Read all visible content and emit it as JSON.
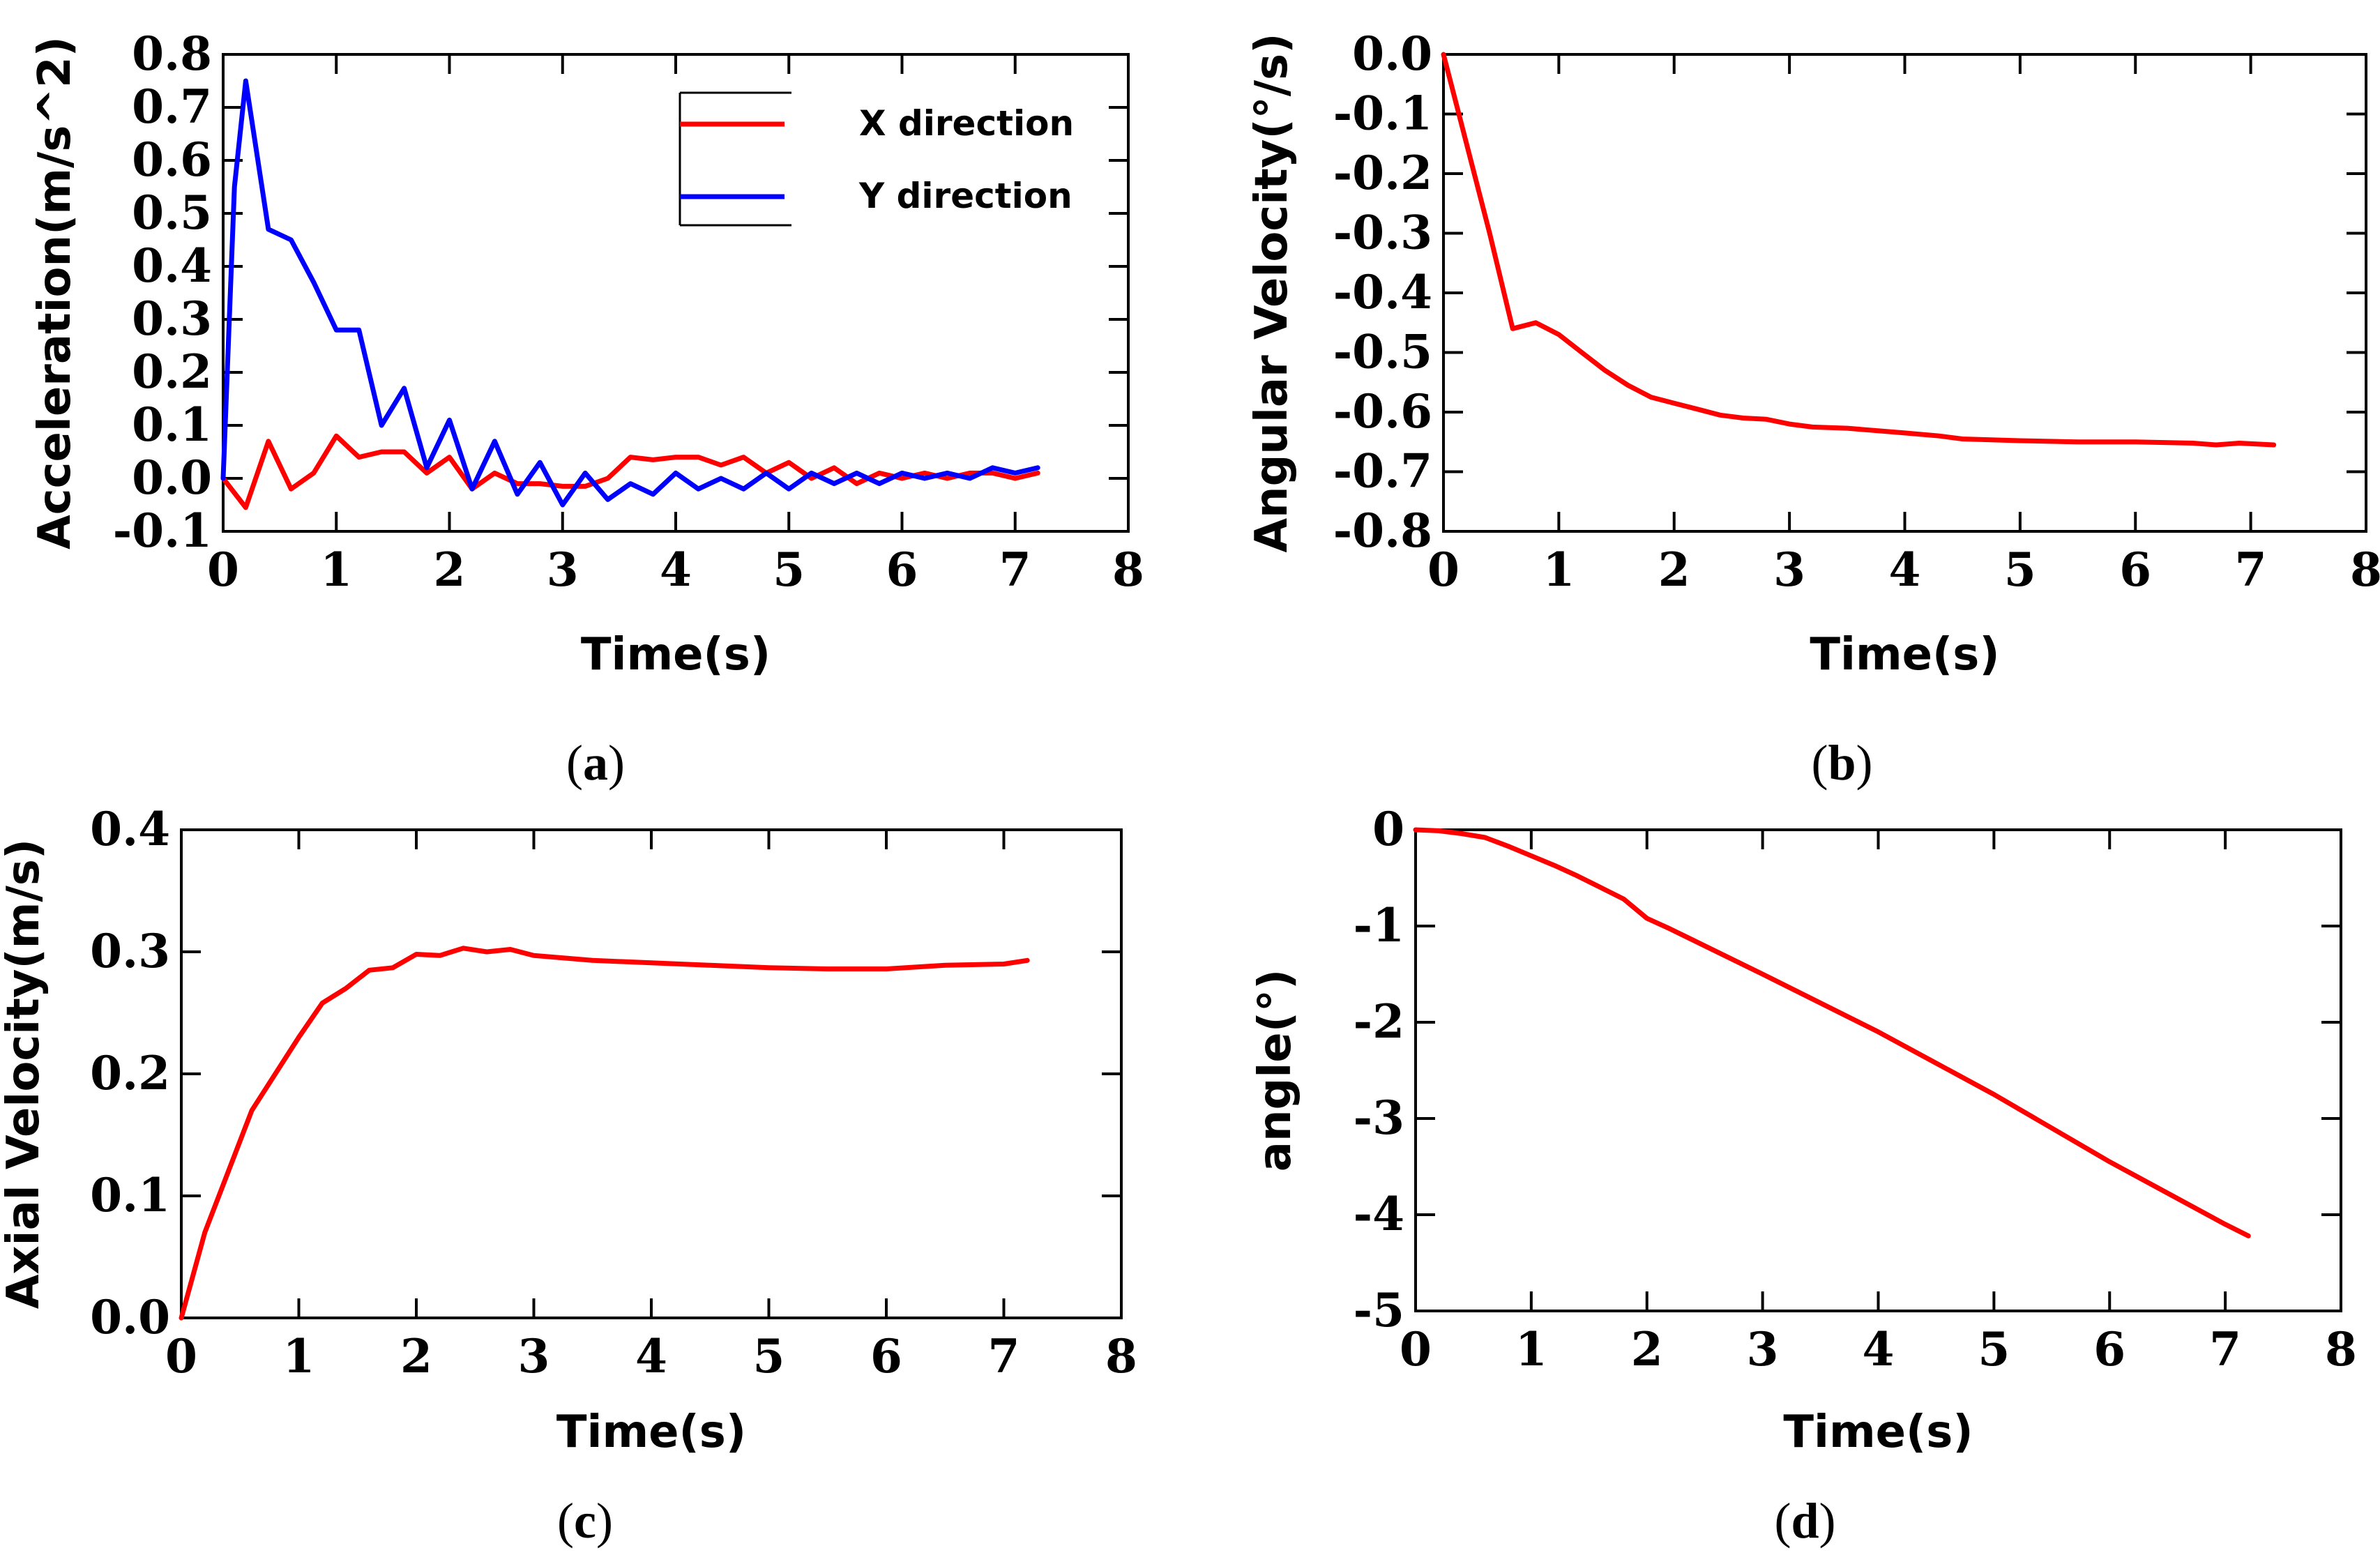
{
  "colors": {
    "red": "#ff0000",
    "blue": "#0000ff",
    "axis": "#000000"
  },
  "chart_data": [
    {
      "type": "line",
      "panel": "(a)",
      "caption": {
        "open": "(",
        "letter": "a",
        "close": ")"
      },
      "xlabel": "Time(s)",
      "ylabel": "Acceleration(m/s^2)",
      "xlim": [
        0,
        8
      ],
      "ylim": [
        -0.1,
        0.8
      ],
      "xticks": [
        0,
        1,
        2,
        3,
        4,
        5,
        6,
        7,
        8
      ],
      "xtick_labels": [
        "0",
        "1",
        "2",
        "3",
        "4",
        "5",
        "6",
        "7",
        "8"
      ],
      "yticks": [
        -0.1,
        0.0,
        0.1,
        0.2,
        0.3,
        0.4,
        0.5,
        0.6,
        0.7,
        0.8
      ],
      "ytick_labels": [
        "-0.1",
        "0.0",
        "0.1",
        "0.2",
        "0.3",
        "0.4",
        "0.5",
        "0.6",
        "0.7",
        "0.8"
      ],
      "legend_position": "top-center",
      "series": [
        {
          "name": "X direction",
          "color": "#ff0000",
          "x": [
            0,
            0.2,
            0.4,
            0.6,
            0.8,
            1.0,
            1.2,
            1.4,
            1.6,
            1.8,
            2.0,
            2.2,
            2.4,
            2.6,
            2.8,
            3.0,
            3.2,
            3.4,
            3.6,
            3.8,
            4.0,
            4.2,
            4.4,
            4.6,
            4.8,
            5.0,
            5.2,
            5.4,
            5.6,
            5.8,
            6.0,
            6.2,
            6.4,
            6.6,
            6.8,
            7.0,
            7.2
          ],
          "y": [
            0.0,
            -0.055,
            0.07,
            -0.02,
            0.01,
            0.08,
            0.04,
            0.05,
            0.05,
            0.01,
            0.04,
            -0.02,
            0.01,
            -0.01,
            -0.01,
            -0.015,
            -0.015,
            0.0,
            0.04,
            0.035,
            0.04,
            0.04,
            0.025,
            0.04,
            0.01,
            0.03,
            0.0,
            0.02,
            -0.01,
            0.01,
            0.0,
            0.01,
            0.0,
            0.01,
            0.01,
            0.0,
            0.01
          ]
        },
        {
          "name": "Y direction",
          "color": "#0000ff",
          "x": [
            0,
            0.1,
            0.2,
            0.4,
            0.6,
            0.8,
            1.0,
            1.2,
            1.4,
            1.6,
            1.8,
            2.0,
            2.2,
            2.4,
            2.6,
            2.8,
            3.0,
            3.2,
            3.4,
            3.6,
            3.8,
            4.0,
            4.2,
            4.4,
            4.6,
            4.8,
            5.0,
            5.2,
            5.4,
            5.6,
            5.8,
            6.0,
            6.2,
            6.4,
            6.6,
            6.8,
            7.0,
            7.2
          ],
          "y": [
            0.0,
            0.55,
            0.75,
            0.47,
            0.45,
            0.37,
            0.28,
            0.28,
            0.1,
            0.17,
            0.02,
            0.11,
            -0.02,
            0.07,
            -0.03,
            0.03,
            -0.05,
            0.01,
            -0.04,
            -0.01,
            -0.03,
            0.01,
            -0.02,
            0.0,
            -0.02,
            0.01,
            -0.02,
            0.01,
            -0.01,
            0.01,
            -0.01,
            0.01,
            0.0,
            0.01,
            0.0,
            0.02,
            0.01,
            0.02
          ]
        }
      ]
    },
    {
      "type": "line",
      "panel": "(b)",
      "caption": {
        "open": "(",
        "letter": "b",
        "close": ")"
      },
      "xlabel": "Time(s)",
      "ylabel": "Angular Velocity(°/s)",
      "xlim": [
        0,
        8
      ],
      "ylim": [
        -0.8,
        0.0
      ],
      "xticks": [
        0,
        1,
        2,
        3,
        4,
        5,
        6,
        7,
        8
      ],
      "xtick_labels": [
        "0",
        "1",
        "2",
        "3",
        "4",
        "5",
        "6",
        "7",
        "8"
      ],
      "yticks": [
        0.0,
        -0.1,
        -0.2,
        -0.3,
        -0.4,
        -0.5,
        -0.6,
        -0.7,
        -0.8
      ],
      "ytick_labels": [
        "0.0",
        "-0.1",
        "-0.2",
        "-0.3",
        "-0.4",
        "-0.5",
        "-0.6",
        "-0.7",
        "-0.8"
      ],
      "series": [
        {
          "name": "Angular velocity",
          "color": "#ff0000",
          "x": [
            0,
            0.2,
            0.4,
            0.6,
            0.8,
            1.0,
            1.2,
            1.4,
            1.6,
            1.8,
            2.0,
            2.2,
            2.4,
            2.6,
            2.8,
            3.0,
            3.2,
            3.5,
            4.0,
            4.3,
            4.5,
            5.0,
            5.5,
            6.0,
            6.5,
            6.7,
            6.9,
            7.2
          ],
          "y": [
            0.0,
            -0.15,
            -0.3,
            -0.46,
            -0.45,
            -0.47,
            -0.5,
            -0.53,
            -0.555,
            -0.575,
            -0.585,
            -0.595,
            -0.605,
            -0.61,
            -0.612,
            -0.62,
            -0.625,
            -0.627,
            -0.635,
            -0.64,
            -0.645,
            -0.648,
            -0.65,
            -0.65,
            -0.652,
            -0.655,
            -0.652,
            -0.655
          ]
        }
      ]
    },
    {
      "type": "line",
      "panel": "(c)",
      "caption": {
        "open": "(",
        "letter": "c",
        "close": ")"
      },
      "xlabel": "Time(s)",
      "ylabel": "Axial Velocity(m/s)",
      "xlim": [
        0,
        8
      ],
      "ylim": [
        0.0,
        0.4
      ],
      "xticks": [
        0,
        1,
        2,
        3,
        4,
        5,
        6,
        7,
        8
      ],
      "xtick_labels": [
        "0",
        "1",
        "2",
        "3",
        "4",
        "5",
        "6",
        "7",
        "8"
      ],
      "yticks": [
        0.0,
        0.1,
        0.2,
        0.3,
        0.4
      ],
      "ytick_labels": [
        "0.0",
        "0.1",
        "0.2",
        "0.3",
        "0.4"
      ],
      "series": [
        {
          "name": "Axial velocity",
          "color": "#ff0000",
          "x": [
            0,
            0.2,
            0.4,
            0.6,
            0.8,
            1.0,
            1.2,
            1.4,
            1.6,
            1.8,
            2.0,
            2.2,
            2.4,
            2.6,
            2.8,
            3.0,
            3.5,
            4.0,
            4.5,
            5.0,
            5.5,
            6.0,
            6.5,
            7.0,
            7.2
          ],
          "y": [
            0.0,
            0.07,
            0.12,
            0.17,
            0.2,
            0.23,
            0.258,
            0.27,
            0.285,
            0.287,
            0.298,
            0.297,
            0.303,
            0.3,
            0.302,
            0.297,
            0.293,
            0.291,
            0.289,
            0.287,
            0.286,
            0.286,
            0.289,
            0.29,
            0.293
          ]
        }
      ]
    },
    {
      "type": "line",
      "panel": "(d)",
      "caption": {
        "open": "(",
        "letter": "d",
        "close": ")"
      },
      "xlabel": "Time(s)",
      "ylabel": "angle(°)",
      "xlim": [
        0,
        8
      ],
      "ylim": [
        -5,
        0
      ],
      "xticks": [
        0,
        1,
        2,
        3,
        4,
        5,
        6,
        7,
        8
      ],
      "xtick_labels": [
        "0",
        "1",
        "2",
        "3",
        "4",
        "5",
        "6",
        "7",
        "8"
      ],
      "yticks": [
        0,
        -1,
        -2,
        -3,
        -4,
        -5
      ],
      "ytick_labels": [
        "0",
        "-1",
        "-2",
        "-3",
        "-4",
        "-5"
      ],
      "series": [
        {
          "name": "Angle",
          "color": "#ff0000",
          "x": [
            0,
            0.2,
            0.4,
            0.6,
            0.8,
            1.0,
            1.2,
            1.4,
            1.6,
            1.8,
            2.0,
            2.2,
            3.0,
            4.0,
            5.0,
            6.0,
            7.0,
            7.2
          ],
          "y": [
            0.0,
            -0.01,
            -0.04,
            -0.08,
            -0.17,
            -0.27,
            -0.37,
            -0.48,
            -0.6,
            -0.72,
            -0.92,
            -1.03,
            -1.5,
            -2.1,
            -2.75,
            -3.45,
            -4.1,
            -4.22
          ]
        }
      ]
    }
  ]
}
